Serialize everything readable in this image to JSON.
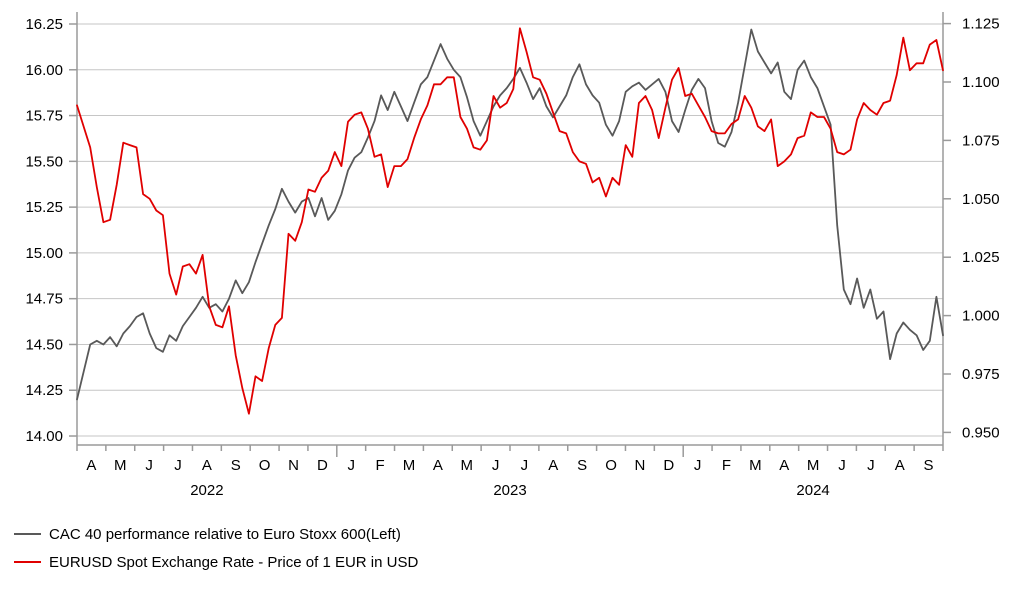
{
  "chart_data": {
    "type": "line",
    "title": "",
    "grid": "horizontal",
    "legend_position": "bottom-left",
    "colors": {
      "grid": "#c6c6c6",
      "axis": "#9a9a9a",
      "text": "#000000",
      "cac40": "#595959",
      "eurusd": "#e00000"
    },
    "left_axis": {
      "max": 16.25,
      "step": 0.25,
      "tick_labels": [
        "16.25",
        "16.00",
        "15.75",
        "15.50",
        "15.25",
        "15.00",
        "14.75",
        "14.50",
        "14.25",
        "14.00"
      ]
    },
    "right_axis": {
      "max": 1.125,
      "step": 0.025,
      "tick_labels": [
        "1.125",
        "1.100",
        "1.075",
        "1.050",
        "1.025",
        "1.000",
        "0.975",
        "0.950"
      ]
    },
    "x_axis": {
      "month_labels": [
        "A",
        "M",
        "J",
        "J",
        "A",
        "S",
        "O",
        "N",
        "D",
        "J",
        "F",
        "M",
        "A",
        "M",
        "J",
        "J",
        "A",
        "S",
        "O",
        "N",
        "D",
        "J",
        "F",
        "M",
        "A",
        "M",
        "J",
        "J",
        "A",
        "S"
      ],
      "year_break_indices": [
        9,
        21
      ],
      "years": [
        {
          "label": "2022",
          "from": 0,
          "to": 9
        },
        {
          "label": "2023",
          "from": 9,
          "to": 21
        },
        {
          "label": "2024",
          "from": 21,
          "to": 30
        }
      ]
    },
    "series": [
      {
        "name": "CAC 40 performance relative to Euro Stoxx 600(Left)",
        "axis": "left",
        "color": "#595959",
        "cadence": "weekly",
        "values": [
          14.2,
          14.35,
          14.5,
          14.52,
          14.5,
          14.54,
          14.49,
          14.56,
          14.6,
          14.65,
          14.67,
          14.56,
          14.48,
          14.46,
          14.55,
          14.52,
          14.6,
          14.65,
          14.7,
          14.76,
          14.7,
          14.72,
          14.68,
          14.75,
          14.85,
          14.78,
          14.84,
          14.95,
          15.05,
          15.15,
          15.24,
          15.35,
          15.28,
          15.22,
          15.28,
          15.3,
          15.2,
          15.3,
          15.18,
          15.23,
          15.32,
          15.45,
          15.52,
          15.55,
          15.63,
          15.72,
          15.86,
          15.78,
          15.88,
          15.8,
          15.72,
          15.82,
          15.92,
          15.96,
          16.05,
          16.14,
          16.06,
          16.0,
          15.96,
          15.85,
          15.72,
          15.64,
          15.72,
          15.8,
          15.86,
          15.9,
          15.95,
          16.01,
          15.93,
          15.84,
          15.9,
          15.8,
          15.74,
          15.8,
          15.86,
          15.96,
          16.03,
          15.92,
          15.86,
          15.82,
          15.7,
          15.64,
          15.72,
          15.88,
          15.91,
          15.93,
          15.89,
          15.92,
          15.95,
          15.88,
          15.72,
          15.66,
          15.78,
          15.89,
          15.95,
          15.9,
          15.72,
          15.6,
          15.58,
          15.66,
          15.82,
          16.02,
          16.22,
          16.1,
          16.04,
          15.98,
          16.04,
          15.88,
          15.84,
          16.0,
          16.05,
          15.96,
          15.9,
          15.8,
          15.7,
          15.15,
          14.8,
          14.72,
          14.86,
          14.7,
          14.8,
          14.64,
          14.68,
          14.42,
          14.56,
          14.62,
          14.58,
          14.55,
          14.47,
          14.52,
          14.76,
          14.55
        ]
      },
      {
        "name": "EURUSD Spot Exchange Rate - Price of 1 EUR in USD",
        "axis": "right",
        "color": "#e00000",
        "cadence": "weekly",
        "values": [
          1.09,
          1.081,
          1.072,
          1.055,
          1.04,
          1.041,
          1.056,
          1.074,
          1.073,
          1.072,
          1.052,
          1.05,
          1.045,
          1.043,
          1.018,
          1.009,
          1.021,
          1.022,
          1.018,
          1.026,
          1.004,
          0.996,
          0.995,
          1.004,
          0.983,
          0.969,
          0.958,
          0.974,
          0.972,
          0.986,
          0.996,
          0.999,
          1.035,
          1.032,
          1.04,
          1.054,
          1.053,
          1.059,
          1.062,
          1.07,
          1.064,
          1.083,
          1.086,
          1.087,
          1.08,
          1.068,
          1.069,
          1.055,
          1.064,
          1.064,
          1.067,
          1.076,
          1.084,
          1.09,
          1.099,
          1.099,
          1.102,
          1.102,
          1.085,
          1.08,
          1.072,
          1.071,
          1.075,
          1.094,
          1.089,
          1.091,
          1.097,
          1.123,
          1.113,
          1.102,
          1.101,
          1.095,
          1.087,
          1.079,
          1.078,
          1.07,
          1.066,
          1.065,
          1.057,
          1.059,
          1.051,
          1.059,
          1.056,
          1.073,
          1.068,
          1.091,
          1.094,
          1.088,
          1.076,
          1.089,
          1.101,
          1.106,
          1.094,
          1.095,
          1.09,
          1.085,
          1.079,
          1.078,
          1.078,
          1.082,
          1.084,
          1.094,
          1.089,
          1.081,
          1.079,
          1.084,
          1.064,
          1.066,
          1.069,
          1.076,
          1.077,
          1.087,
          1.085,
          1.085,
          1.08,
          1.07,
          1.069,
          1.071,
          1.084,
          1.091,
          1.088,
          1.086,
          1.091,
          1.092,
          1.103,
          1.119,
          1.105,
          1.108,
          1.108,
          1.116,
          1.118,
          1.105
        ]
      }
    ]
  }
}
